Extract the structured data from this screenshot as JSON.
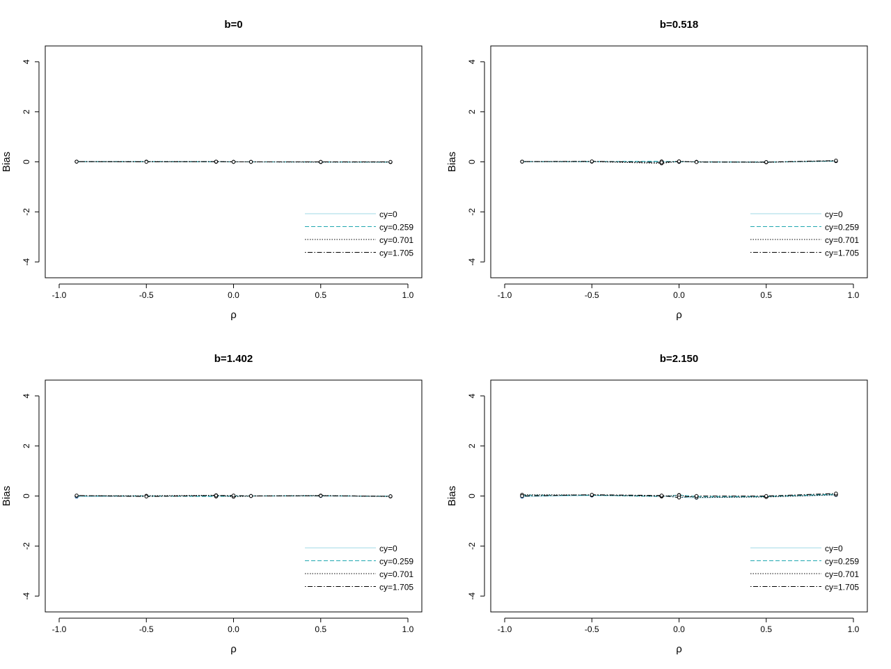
{
  "figure": {
    "colors": {
      "background": "#ffffff",
      "axis": "#000000"
    }
  },
  "chart_data": [
    {
      "type": "line",
      "title": "b=0",
      "xlabel": "ρ",
      "ylabel": "Bias",
      "xlim": [
        -1.0,
        1.0
      ],
      "ylim": [
        -4.3,
        4.3
      ],
      "xticks": [
        "-1.0",
        "-0.5",
        "0.0",
        "0.5",
        "1.0"
      ],
      "xtick_values": [
        -1.0,
        -0.5,
        0.0,
        0.5,
        1.0
      ],
      "yticks": [
        "-4",
        "-2",
        "0",
        "2",
        "4"
      ],
      "ytick_values": [
        -4,
        -2,
        0,
        2,
        4
      ],
      "x": [
        -0.9,
        -0.5,
        -0.1,
        0.0,
        0.1,
        0.5,
        0.9
      ],
      "legend_position": "bottom-right",
      "series": [
        {
          "name": "cy=0",
          "color": "#9fd8e6",
          "dash": "solid",
          "values": [
            0.01,
            0.01,
            0.01,
            0.0,
            0.0,
            -0.01,
            -0.01
          ]
        },
        {
          "name": "cy=0.259",
          "color": "#1fa7b0",
          "dash": "dashed",
          "values": [
            0.01,
            0.01,
            0.0,
            0.0,
            0.0,
            0.0,
            -0.01
          ]
        },
        {
          "name": "cy=0.701",
          "color": "#000000",
          "dash": "dotted",
          "values": [
            0.01,
            0.01,
            0.01,
            0.0,
            0.0,
            -0.01,
            -0.01
          ]
        },
        {
          "name": "cy=1.705",
          "color": "#000000",
          "dash": "dotdash",
          "values": [
            0.01,
            0.0,
            0.01,
            0.0,
            0.0,
            0.0,
            0.0
          ]
        }
      ]
    },
    {
      "type": "line",
      "title": "b=0.518",
      "xlabel": "ρ",
      "ylabel": "Bias",
      "xlim": [
        -1.0,
        1.0
      ],
      "ylim": [
        -4.3,
        4.3
      ],
      "xticks": [
        "-1.0",
        "-0.5",
        "0.0",
        "0.5",
        "1.0"
      ],
      "xtick_values": [
        -1.0,
        -0.5,
        0.0,
        0.5,
        1.0
      ],
      "yticks": [
        "-4",
        "-2",
        "0",
        "2",
        "4"
      ],
      "ytick_values": [
        -4,
        -2,
        0,
        2,
        4
      ],
      "x": [
        -0.9,
        -0.5,
        -0.1,
        0.0,
        0.1,
        0.5,
        0.9
      ],
      "legend_position": "bottom-right",
      "series": [
        {
          "name": "cy=0",
          "color": "#9fd8e6",
          "dash": "solid",
          "values": [
            0.01,
            0.01,
            0.0,
            0.0,
            0.0,
            -0.01,
            0.03
          ]
        },
        {
          "name": "cy=0.259",
          "color": "#1fa7b0",
          "dash": "dashed",
          "values": [
            0.01,
            0.01,
            0.02,
            0.0,
            0.0,
            -0.01,
            0.03
          ]
        },
        {
          "name": "cy=0.701",
          "color": "#000000",
          "dash": "dotted",
          "values": [
            0.01,
            0.01,
            -0.06,
            0.02,
            0.0,
            -0.02,
            0.04
          ]
        },
        {
          "name": "cy=1.705",
          "color": "#000000",
          "dash": "dotdash",
          "values": [
            0.01,
            0.02,
            -0.02,
            0.02,
            -0.01,
            -0.01,
            0.05
          ]
        }
      ]
    },
    {
      "type": "line",
      "title": "b=1.402",
      "xlabel": "ρ",
      "ylabel": "Bias",
      "xlim": [
        -1.0,
        1.0
      ],
      "ylim": [
        -4.3,
        4.3
      ],
      "xticks": [
        "-1.0",
        "-0.5",
        "0.0",
        "0.5",
        "1.0"
      ],
      "xtick_values": [
        -1.0,
        -0.5,
        0.0,
        0.5,
        1.0
      ],
      "yticks": [
        "-4",
        "-2",
        "0",
        "2",
        "4"
      ],
      "ytick_values": [
        -4,
        -2,
        0,
        2,
        4
      ],
      "x": [
        -0.9,
        -0.5,
        -0.1,
        0.0,
        0.1,
        0.5,
        0.9
      ],
      "legend_position": "bottom-right",
      "series": [
        {
          "name": "cy=0",
          "color": "#9fd8e6",
          "dash": "solid",
          "values": [
            -0.03,
            0.0,
            0.0,
            0.0,
            0.0,
            0.0,
            -0.01
          ]
        },
        {
          "name": "cy=0.259",
          "color": "#1fa7b0",
          "dash": "dashed",
          "values": [
            0.01,
            0.0,
            -0.02,
            0.0,
            0.0,
            0.01,
            -0.01
          ]
        },
        {
          "name": "cy=0.701",
          "color": "#000000",
          "dash": "dotted",
          "values": [
            0.01,
            0.01,
            0.03,
            -0.03,
            0.0,
            0.02,
            -0.02
          ]
        },
        {
          "name": "cy=1.705",
          "color": "#000000",
          "dash": "dotdash",
          "values": [
            0.02,
            -0.02,
            0.02,
            0.02,
            0.0,
            0.01,
            -0.01
          ]
        }
      ]
    },
    {
      "type": "line",
      "title": "b=2.150",
      "xlabel": "ρ",
      "ylabel": "Bias",
      "xlim": [
        -1.0,
        1.0
      ],
      "ylim": [
        -4.3,
        4.3
      ],
      "xticks": [
        "-1.0",
        "-0.5",
        "0.0",
        "0.5",
        "1.0"
      ],
      "xtick_values": [
        -1.0,
        -0.5,
        0.0,
        0.5,
        1.0
      ],
      "yticks": [
        "-4",
        "-2",
        "0",
        "2",
        "4"
      ],
      "ytick_values": [
        -4,
        -2,
        0,
        2,
        4
      ],
      "x": [
        -0.9,
        -0.5,
        -0.1,
        0.0,
        0.1,
        0.5,
        0.9
      ],
      "legend_position": "bottom-right",
      "series": [
        {
          "name": "cy=0",
          "color": "#9fd8e6",
          "dash": "solid",
          "values": [
            -0.03,
            0.02,
            0.0,
            -0.05,
            -0.07,
            -0.03,
            0.04
          ]
        },
        {
          "name": "cy=0.259",
          "color": "#1fa7b0",
          "dash": "dashed",
          "values": [
            0.03,
            0.03,
            -0.02,
            0.04,
            -0.02,
            -0.02,
            0.07
          ]
        },
        {
          "name": "cy=0.701",
          "color": "#000000",
          "dash": "dotted",
          "values": [
            0.05,
            0.04,
            -0.01,
            0.03,
            -0.06,
            -0.04,
            0.05
          ]
        },
        {
          "name": "cy=1.705",
          "color": "#000000",
          "dash": "dotdash",
          "values": [
            0.0,
            0.05,
            0.02,
            -0.06,
            0.0,
            0.0,
            0.1
          ]
        }
      ]
    }
  ]
}
